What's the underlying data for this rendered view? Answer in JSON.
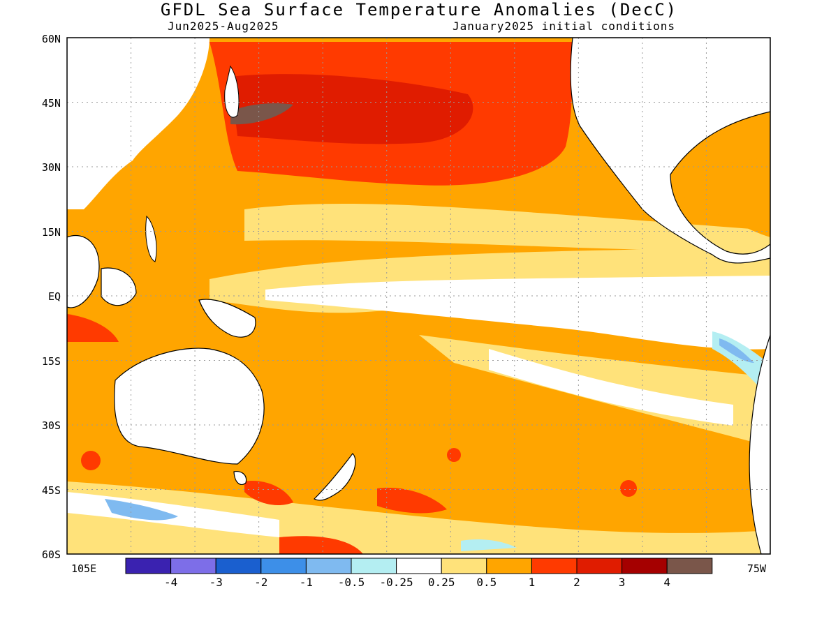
{
  "title": "GFDL Sea Surface Temperature Anomalies (DecC)",
  "subtitle_left": "Jun2025-Aug2025",
  "subtitle_right": "January2025 initial conditions",
  "map": {
    "lat_labels": [
      "60N",
      "45N",
      "30N",
      "15N",
      "EQ",
      "15S",
      "30S",
      "45S",
      "60S"
    ],
    "lon_label_left": "105E",
    "lon_label_right": "75W",
    "lat_range": [
      -60,
      60
    ],
    "lon_range": [
      "105E",
      "75W"
    ],
    "grid": "dotted"
  },
  "colorbar": {
    "labels": [
      "-4",
      "-3",
      "-2",
      "-1",
      "-0.5",
      "-0.25",
      "0.25",
      "0.5",
      "1",
      "2",
      "3",
      "4"
    ],
    "colors": [
      "#3a22b0",
      "#7d6ee8",
      "#1a5fcf",
      "#3d8fe8",
      "#7fbaf0",
      "#b4eef2",
      "#ffffff",
      "#ffe27a",
      "#ffa500",
      "#ff3a00",
      "#e01c00",
      "#a50000",
      "#7a564a"
    ]
  },
  "colors": {
    "warm_light": "#ffe27a",
    "warm_orange": "#ffa500",
    "warm_red": "#ff3a00",
    "warm_darkred": "#e01c00",
    "cool_light": "#b4eef2",
    "cool_blue": "#7fbaf0",
    "cool_mid": "#3d8fe8",
    "brown": "#7a564a"
  }
}
